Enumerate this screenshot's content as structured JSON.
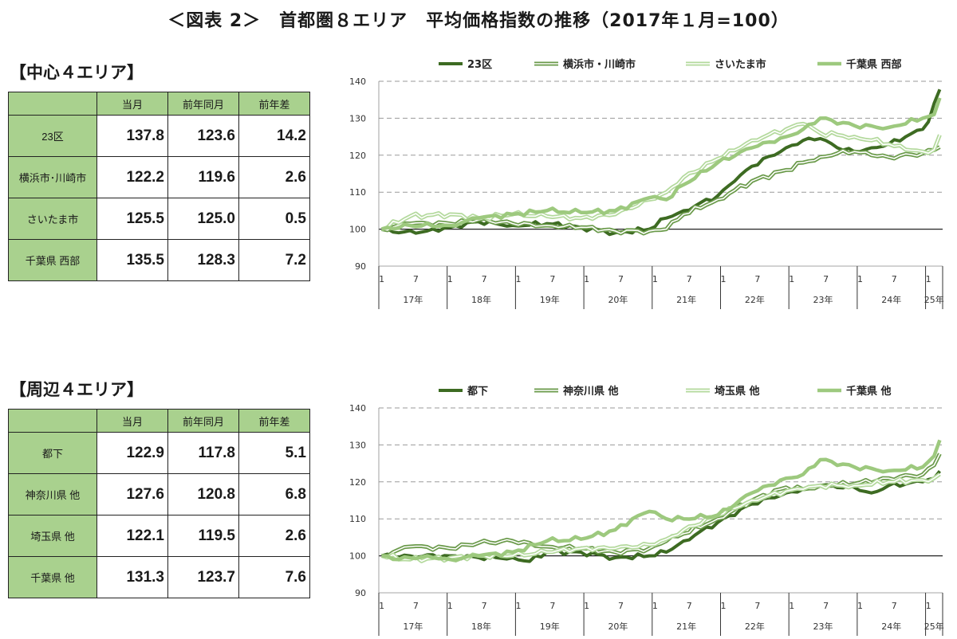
{
  "title": "＜図表 2＞　首都圏８エリア　平均価格指数の推移（2017年１月=100）",
  "sections": [
    {
      "heading": "【中心４エリア】",
      "table": {
        "headers": [
          "",
          "当月",
          "前年同月",
          "前年差"
        ],
        "rows": [
          {
            "label": "23区",
            "current": "137.8",
            "prev": "123.6",
            "diff": "14.2"
          },
          {
            "label": "横浜市･川崎市",
            "current": "122.2",
            "prev": "119.6",
            "diff": "2.6"
          },
          {
            "label": "さいたま市",
            "current": "125.5",
            "prev": "125.0",
            "diff": "0.5"
          },
          {
            "label": "千葉県 西部",
            "current": "135.5",
            "prev": "128.3",
            "diff": "7.2"
          }
        ]
      }
    },
    {
      "heading": "【周辺４エリア】",
      "table": {
        "headers": [
          "",
          "当月",
          "前年同月",
          "前年差"
        ],
        "rows": [
          {
            "label": "都下",
            "current": "122.9",
            "prev": "117.8",
            "diff": "5.1"
          },
          {
            "label": "神奈川県 他",
            "current": "127.6",
            "prev": "120.8",
            "diff": "6.8"
          },
          {
            "label": "埼玉県 他",
            "current": "122.1",
            "prev": "119.5",
            "diff": "2.6"
          },
          {
            "label": "千葉県 他",
            "current": "131.3",
            "prev": "123.7",
            "diff": "7.6"
          }
        ]
      }
    }
  ],
  "chart_data": [
    {
      "type": "line",
      "ylim": [
        90,
        140
      ],
      "yticks": [
        90,
        100,
        110,
        120,
        130,
        140
      ],
      "baseline": 100,
      "grid": true,
      "legend_position": "top",
      "x_month_labels": [
        "1",
        "7"
      ],
      "x_year_labels": [
        "17年",
        "18年",
        "19年",
        "20年",
        "21年",
        "22年",
        "23年",
        "24年",
        "25年"
      ],
      "x_range": [
        "2017-01",
        "2025-03"
      ],
      "series": [
        {
          "name": "23区",
          "color": "#3d6b22",
          "style": "solid",
          "keypoints": [
            [
              "2017-01",
              100
            ],
            [
              "2017-04",
              99
            ],
            [
              "2017-09",
              99.5
            ],
            [
              "2018-01",
              100.5
            ],
            [
              "2018-06",
              102
            ],
            [
              "2018-12",
              101
            ],
            [
              "2019-06",
              101.5
            ],
            [
              "2019-12",
              100.5
            ],
            [
              "2020-06",
              99
            ],
            [
              "2020-12",
              100
            ],
            [
              "2021-03",
              103
            ],
            [
              "2021-06",
              105
            ],
            [
              "2021-12",
              109
            ],
            [
              "2022-03",
              113
            ],
            [
              "2022-06",
              117
            ],
            [
              "2022-12",
              122
            ],
            [
              "2023-03",
              124
            ],
            [
              "2023-06",
              124.5
            ],
            [
              "2023-09",
              122
            ],
            [
              "2023-12",
              121
            ],
            [
              "2024-03",
              122
            ],
            [
              "2024-06",
              123
            ],
            [
              "2024-09",
              125
            ],
            [
              "2024-12",
              127
            ],
            [
              "2025-01",
              129
            ],
            [
              "2025-02",
              134
            ],
            [
              "2025-03",
              137.8
            ]
          ]
        },
        {
          "name": "横浜市・川崎市",
          "color": "#6a9a4a",
          "style": "double",
          "keypoints": [
            [
              "2017-01",
              100
            ],
            [
              "2017-06",
              101.5
            ],
            [
              "2018-01",
              101.5
            ],
            [
              "2018-06",
              102.5
            ],
            [
              "2018-12",
              101.5
            ],
            [
              "2019-06",
              101
            ],
            [
              "2019-12",
              100.5
            ],
            [
              "2020-06",
              99.5
            ],
            [
              "2020-12",
              99.5
            ],
            [
              "2021-03",
              100
            ],
            [
              "2021-06",
              104
            ],
            [
              "2021-12",
              108
            ],
            [
              "2022-06",
              113
            ],
            [
              "2022-12",
              116
            ],
            [
              "2023-03",
              118
            ],
            [
              "2023-06",
              119.5
            ],
            [
              "2023-09",
              120.5
            ],
            [
              "2023-12",
              121
            ],
            [
              "2024-03",
              120
            ],
            [
              "2024-06",
              119.5
            ],
            [
              "2024-12",
              120.5
            ],
            [
              "2025-03",
              122.2
            ]
          ]
        },
        {
          "name": "さいたま市",
          "color": "#b3d99c",
          "style": "double",
          "keypoints": [
            [
              "2017-01",
              100
            ],
            [
              "2017-06",
              103.5
            ],
            [
              "2018-01",
              104
            ],
            [
              "2018-06",
              103
            ],
            [
              "2018-12",
              104
            ],
            [
              "2019-06",
              103.5
            ],
            [
              "2019-12",
              103
            ],
            [
              "2020-06",
              104
            ],
            [
              "2020-12",
              108
            ],
            [
              "2021-03",
              110
            ],
            [
              "2021-06",
              114
            ],
            [
              "2021-12",
              119
            ],
            [
              "2022-06",
              124
            ],
            [
              "2022-12",
              127
            ],
            [
              "2023-03",
              128.5
            ],
            [
              "2023-06",
              126
            ],
            [
              "2023-12",
              125
            ],
            [
              "2024-03",
              124
            ],
            [
              "2024-06",
              123
            ],
            [
              "2024-09",
              121.5
            ],
            [
              "2024-12",
              121
            ],
            [
              "2025-02",
              121.5
            ],
            [
              "2025-03",
              125.5
            ]
          ]
        },
        {
          "name": "千葉県 西部",
          "color": "#9dc97e",
          "style": "solid-thick",
          "keypoints": [
            [
              "2017-01",
              100
            ],
            [
              "2017-06",
              101
            ],
            [
              "2018-01",
              101
            ],
            [
              "2018-06",
              103
            ],
            [
              "2018-12",
              104
            ],
            [
              "2019-06",
              105
            ],
            [
              "2019-12",
              104.5
            ],
            [
              "2020-06",
              105
            ],
            [
              "2020-12",
              108.5
            ],
            [
              "2021-03",
              108
            ],
            [
              "2021-06",
              112
            ],
            [
              "2021-12",
              118
            ],
            [
              "2022-06",
              122
            ],
            [
              "2022-12",
              125
            ],
            [
              "2023-03",
              127
            ],
            [
              "2023-06",
              130
            ],
            [
              "2023-12",
              128
            ],
            [
              "2024-06",
              127.5
            ],
            [
              "2024-12",
              130
            ],
            [
              "2025-02",
              131
            ],
            [
              "2025-03",
              135.5
            ]
          ]
        }
      ]
    },
    {
      "type": "line",
      "ylim": [
        90,
        140
      ],
      "yticks": [
        90,
        100,
        110,
        120,
        130,
        140
      ],
      "baseline": 100,
      "grid": true,
      "legend_position": "top",
      "x_month_labels": [
        "1",
        "7"
      ],
      "x_year_labels": [
        "17年",
        "18年",
        "19年",
        "20年",
        "21年",
        "22年",
        "23年",
        "24年",
        "25年"
      ],
      "x_range": [
        "2017-01",
        "2025-03"
      ],
      "series": [
        {
          "name": "都下",
          "color": "#3d6b22",
          "style": "solid",
          "keypoints": [
            [
              "2017-01",
              100
            ],
            [
              "2017-06",
              100
            ],
            [
              "2018-01",
              100
            ],
            [
              "2018-06",
              99.5
            ],
            [
              "2018-12",
              99.5
            ],
            [
              "2019-03",
              98.5
            ],
            [
              "2019-06",
              101
            ],
            [
              "2019-12",
              101
            ],
            [
              "2020-06",
              99.5
            ],
            [
              "2020-12",
              100
            ],
            [
              "2021-03",
              101
            ],
            [
              "2021-06",
              104
            ],
            [
              "2021-12",
              109
            ],
            [
              "2022-06",
              114
            ],
            [
              "2022-12",
              117
            ],
            [
              "2023-03",
              118
            ],
            [
              "2023-06",
              119
            ],
            [
              "2023-12",
              118.5
            ],
            [
              "2024-03",
              117
            ],
            [
              "2024-06",
              119
            ],
            [
              "2024-12",
              120
            ],
            [
              "2025-02",
              121
            ],
            [
              "2025-03",
              122.9
            ]
          ]
        },
        {
          "name": "神奈川県 他",
          "color": "#6a9a4a",
          "style": "double",
          "keypoints": [
            [
              "2017-01",
              100
            ],
            [
              "2017-06",
              102.5
            ],
            [
              "2018-01",
              102
            ],
            [
              "2018-06",
              103.5
            ],
            [
              "2018-12",
              104
            ],
            [
              "2019-06",
              102.5
            ],
            [
              "2019-12",
              102
            ],
            [
              "2020-06",
              101
            ],
            [
              "2020-12",
              102
            ],
            [
              "2021-03",
              104
            ],
            [
              "2021-06",
              106
            ],
            [
              "2021-12",
              110
            ],
            [
              "2022-06",
              115
            ],
            [
              "2022-12",
              118.5
            ],
            [
              "2023-03",
              118
            ],
            [
              "2023-06",
              119
            ],
            [
              "2023-12",
              119.5
            ],
            [
              "2024-06",
              121
            ],
            [
              "2024-12",
              122
            ],
            [
              "2025-02",
              124.5
            ],
            [
              "2025-03",
              127.6
            ]
          ]
        },
        {
          "name": "埼玉県 他",
          "color": "#b3d99c",
          "style": "double",
          "keypoints": [
            [
              "2017-01",
              100
            ],
            [
              "2017-06",
              99
            ],
            [
              "2018-01",
              99.5
            ],
            [
              "2018-06",
              100
            ],
            [
              "2018-12",
              100
            ],
            [
              "2019-06",
              101
            ],
            [
              "2019-12",
              102
            ],
            [
              "2020-06",
              102
            ],
            [
              "2020-12",
              103
            ],
            [
              "2021-03",
              104.5
            ],
            [
              "2021-06",
              107
            ],
            [
              "2021-12",
              111
            ],
            [
              "2022-06",
              115
            ],
            [
              "2022-12",
              117.5
            ],
            [
              "2023-03",
              118
            ],
            [
              "2023-06",
              119
            ],
            [
              "2023-12",
              119
            ],
            [
              "2024-06",
              120
            ],
            [
              "2024-12",
              120.5
            ],
            [
              "2025-02",
              121
            ],
            [
              "2025-03",
              122.1
            ]
          ]
        },
        {
          "name": "千葉県 他",
          "color": "#9dc97e",
          "style": "solid-thick",
          "keypoints": [
            [
              "2017-01",
              100
            ],
            [
              "2017-04",
              99
            ],
            [
              "2017-09",
              100
            ],
            [
              "2018-01",
              99
            ],
            [
              "2018-06",
              100
            ],
            [
              "2018-12",
              101
            ],
            [
              "2019-06",
              104
            ],
            [
              "2019-12",
              104.5
            ],
            [
              "2020-06",
              107
            ],
            [
              "2020-09",
              110
            ],
            [
              "2020-12",
              112
            ],
            [
              "2021-03",
              110
            ],
            [
              "2021-06",
              110
            ],
            [
              "2021-12",
              111
            ],
            [
              "2022-06",
              117
            ],
            [
              "2022-12",
              121
            ],
            [
              "2023-03",
              122
            ],
            [
              "2023-06",
              126
            ],
            [
              "2023-12",
              124
            ],
            [
              "2024-06",
              123
            ],
            [
              "2024-12",
              124
            ],
            [
              "2025-02",
              127
            ],
            [
              "2025-03",
              131.3
            ]
          ]
        }
      ]
    }
  ]
}
